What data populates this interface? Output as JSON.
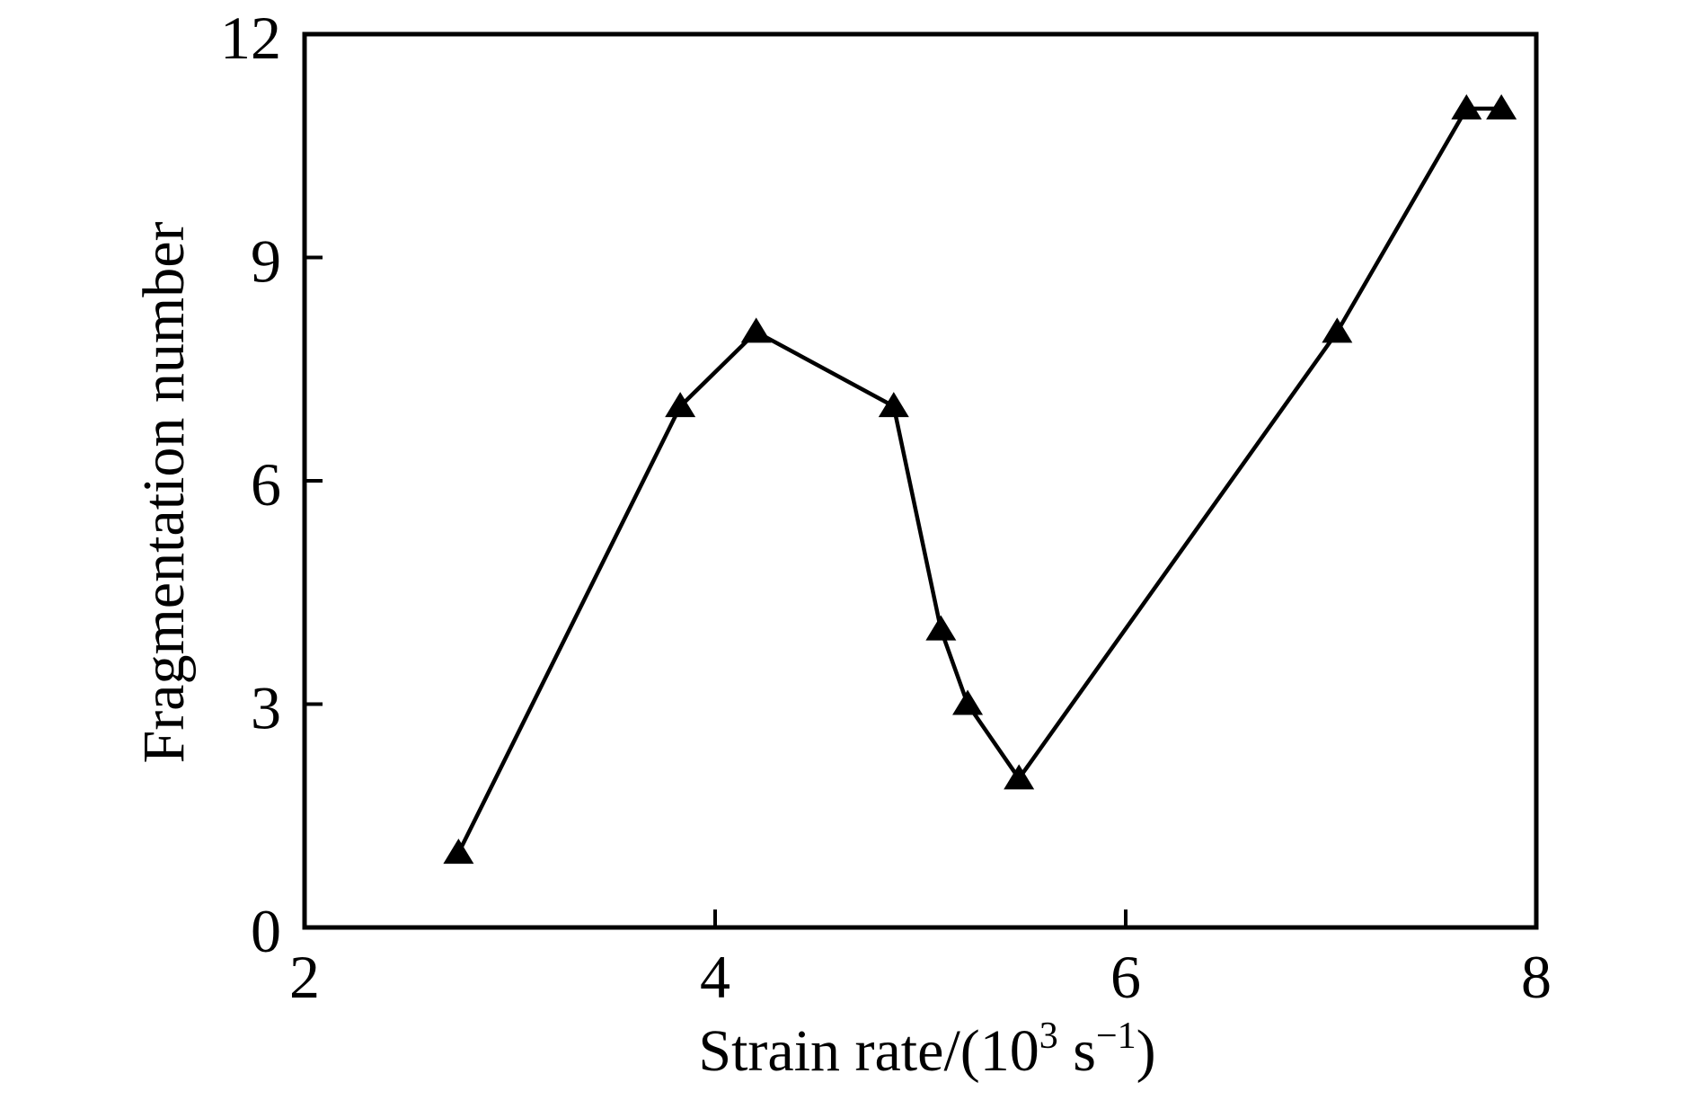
{
  "figure": {
    "background_color": "#ffffff",
    "ink_color": "#000000"
  },
  "chart_data": {
    "type": "line",
    "title": "",
    "ylabel": "Fragmentation number",
    "xlabel_text": "Strain rate/(10³ s⁻¹)",
    "xlabel_parts": {
      "prefix": "Strain rate/(10",
      "sup1": "3",
      "mid": " s",
      "sup2": "−1",
      "suffix": ")"
    },
    "xlim": [
      2,
      8
    ],
    "ylim": [
      0,
      12
    ],
    "xticks": [
      "2",
      "4",
      "6",
      "8"
    ],
    "yticks": [
      "0",
      "3",
      "6",
      "9",
      "12"
    ],
    "grid": false,
    "legend": null,
    "marker": "filled-triangle-up",
    "line_color": "#000000",
    "marker_color": "#000000",
    "series": [
      {
        "name": "fragmentation-number",
        "x": [
          2.75,
          3.83,
          4.2,
          4.87,
          5.1,
          5.23,
          5.48,
          7.03,
          7.66,
          7.83
        ],
        "y": [
          1,
          7,
          8,
          7,
          4,
          3,
          2,
          8,
          11,
          11
        ]
      }
    ]
  }
}
